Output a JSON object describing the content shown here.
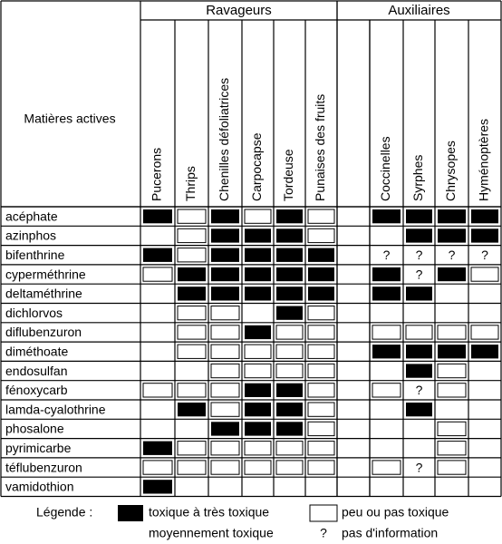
{
  "header": {
    "row_label": "Matières actives",
    "groups": [
      {
        "label": "Ravageurs",
        "columns": [
          "Pucerons",
          "Thrips",
          "Chenilles défoliatrices",
          "Carpocapse",
          "Tordeuse",
          "Punaises des fruits"
        ]
      },
      {
        "label": "Auxiliaires",
        "columns": [
          "Coccinelles",
          "Syrphes",
          "Chrysopes",
          "Hyménoptères"
        ]
      }
    ]
  },
  "rows": [
    {
      "label": "acéphate",
      "cells": [
        0,
        1,
        0,
        1,
        0,
        1,
        0,
        0,
        0,
        0
      ]
    },
    {
      "label": "azinphos",
      "cells": [
        2,
        1,
        0,
        0,
        0,
        1,
        2,
        0,
        0,
        0
      ]
    },
    {
      "label": "bifenthrine",
      "cells": [
        0,
        1,
        0,
        0,
        0,
        0,
        3,
        3,
        3,
        3
      ]
    },
    {
      "label": "cyperméthrine",
      "cells": [
        1,
        0,
        0,
        0,
        0,
        0,
        0,
        3,
        0,
        1
      ]
    },
    {
      "label": "deltaméthrine",
      "cells": [
        2,
        0,
        0,
        0,
        0,
        0,
        0,
        0,
        2,
        2
      ]
    },
    {
      "label": "dichlorvos",
      "cells": [
        2,
        1,
        1,
        2,
        0,
        1,
        2,
        2,
        2,
        2
      ]
    },
    {
      "label": "diflubenzuron",
      "cells": [
        2,
        1,
        1,
        0,
        1,
        1,
        1,
        1,
        1,
        1
      ]
    },
    {
      "label": "diméthoate",
      "cells": [
        2,
        1,
        1,
        1,
        1,
        1,
        0,
        0,
        0,
        0
      ]
    },
    {
      "label": "endosulfan",
      "cells": [
        2,
        2,
        1,
        1,
        1,
        1,
        2,
        0,
        1,
        2
      ]
    },
    {
      "label": "fénoxycarb",
      "cells": [
        1,
        1,
        1,
        0,
        0,
        1,
        1,
        3,
        1,
        2
      ]
    },
    {
      "label": "lamda-cyalothrine",
      "cells": [
        2,
        0,
        1,
        0,
        0,
        1,
        2,
        0,
        2,
        2
      ]
    },
    {
      "label": "phosalone",
      "cells": [
        2,
        2,
        0,
        0,
        0,
        1,
        2,
        2,
        1,
        2
      ]
    },
    {
      "label": "pyrimicarbe",
      "cells": [
        0,
        1,
        1,
        1,
        1,
        1,
        2,
        2,
        1,
        2
      ]
    },
    {
      "label": "téflubenzuron",
      "cells": [
        1,
        1,
        1,
        1,
        1,
        1,
        1,
        3,
        1,
        2
      ]
    },
    {
      "label": "vamidothion",
      "cells": [
        0,
        2,
        2,
        2,
        2,
        2,
        2,
        2,
        2,
        2
      ]
    }
  ],
  "legend": {
    "title": "Légende :",
    "items": [
      {
        "label": "toxique à très toxique"
      },
      {
        "label": "peu ou pas toxique"
      },
      {
        "label": "moyennement toxique"
      },
      {
        "label": "pas d'information",
        "symbol": "?"
      }
    ]
  }
}
